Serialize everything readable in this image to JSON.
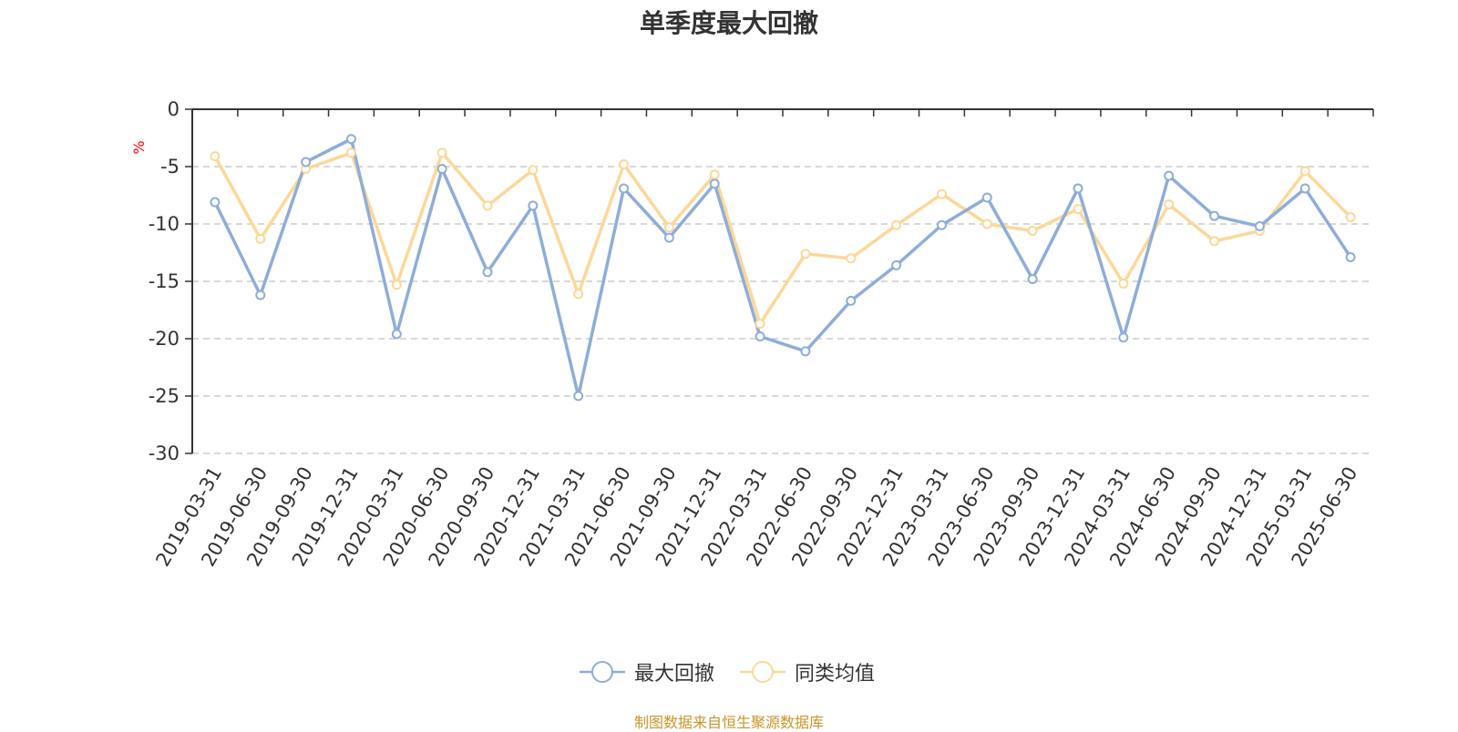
{
  "chart_data": {
    "type": "line",
    "title": "单季度最大回撤",
    "ylabel": "%",
    "ylim": [
      -30,
      0
    ],
    "yticks": [
      0,
      -5,
      -10,
      -15,
      -20,
      -25,
      -30
    ],
    "grid": true,
    "legend_position": "bottom",
    "categories": [
      "2019-03-31",
      "2019-06-30",
      "2019-09-30",
      "2019-12-31",
      "2020-03-31",
      "2020-06-30",
      "2020-09-30",
      "2020-12-31",
      "2021-03-31",
      "2021-06-30",
      "2021-09-30",
      "2021-12-31",
      "2022-03-31",
      "2022-06-30",
      "2022-09-30",
      "2022-12-31",
      "2023-03-31",
      "2023-06-30",
      "2023-09-30",
      "2023-12-31",
      "2024-03-31",
      "2024-06-30",
      "2024-09-30",
      "2024-12-31",
      "2025-03-31",
      "2025-06-30"
    ],
    "series": [
      {
        "name": "最大回撤",
        "color": "#8eadd9",
        "values": [
          -8.1,
          -16.2,
          -4.6,
          -2.6,
          -19.6,
          -5.2,
          -14.2,
          -8.4,
          -25.0,
          -6.9,
          -11.2,
          -6.5,
          -19.8,
          -21.1,
          -16.7,
          -13.6,
          -10.1,
          -7.7,
          -14.8,
          -6.9,
          -19.9,
          -5.8,
          -9.3,
          -10.2,
          -6.9,
          -12.9
        ]
      },
      {
        "name": "同类均值",
        "color": "#fcd898",
        "values": [
          -4.1,
          -11.3,
          -5.2,
          -3.8,
          -15.3,
          -3.8,
          -8.4,
          -5.3,
          -16.1,
          -4.8,
          -10.3,
          -5.7,
          -18.7,
          -12.6,
          -13.0,
          -10.1,
          -7.4,
          -10.0,
          -10.6,
          -8.7,
          -15.2,
          -8.3,
          -11.5,
          -10.6,
          -5.4,
          -9.4
        ]
      }
    ]
  },
  "source_note": "制图数据来自恒生聚源数据库",
  "colors": {
    "axis": "#333333",
    "grid": "#cccccc",
    "ylabel": "#ff0000",
    "source": "#c8952a"
  }
}
